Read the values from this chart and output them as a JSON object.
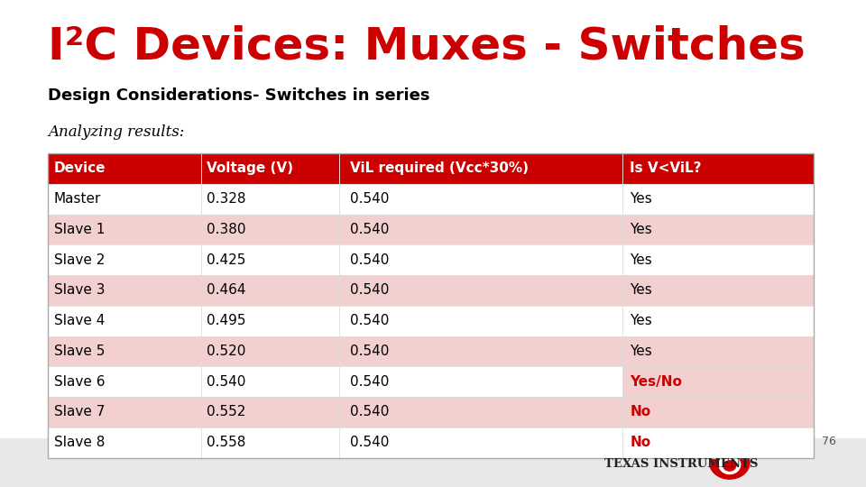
{
  "title_main": "I²C Devices: Muxes - Switches",
  "title_sub": "Design Considerations- Switches in series",
  "analyzing_text": "Analyzing results:",
  "page_number": "76",
  "headers": [
    "Device",
    "Voltage (V)",
    "ViL required (Vcc*30%)",
    "Is V<ViL?"
  ],
  "rows": [
    [
      "Master",
      "0.328",
      "0.540",
      "Yes"
    ],
    [
      "Slave 1",
      "0.380",
      "0.540",
      "Yes"
    ],
    [
      "Slave 2",
      "0.425",
      "0.540",
      "Yes"
    ],
    [
      "Slave 3",
      "0.464",
      "0.540",
      "Yes"
    ],
    [
      "Slave 4",
      "0.495",
      "0.540",
      "Yes"
    ],
    [
      "Slave 5",
      "0.520",
      "0.540",
      "Yes"
    ],
    [
      "Slave 6",
      "0.540",
      "0.540",
      "Yes/No"
    ],
    [
      "Slave 7",
      "0.552",
      "0.540",
      "No"
    ],
    [
      "Slave 8",
      "0.558",
      "0.540",
      "No"
    ]
  ],
  "row_colors": [
    [
      "#ffffff",
      "#ffffff",
      "#ffffff",
      "#ffffff"
    ],
    [
      "#f2d0d0",
      "#f2d0d0",
      "#f2d0d0",
      "#f2d0d0"
    ],
    [
      "#ffffff",
      "#ffffff",
      "#ffffff",
      "#ffffff"
    ],
    [
      "#f2d0d0",
      "#f2d0d0",
      "#f2d0d0",
      "#f2d0d0"
    ],
    [
      "#ffffff",
      "#ffffff",
      "#ffffff",
      "#ffffff"
    ],
    [
      "#f2d0d0",
      "#f2d0d0",
      "#f2d0d0",
      "#f2d0d0"
    ],
    [
      "#ffffff",
      "#ffffff",
      "#ffffff",
      "#f2d0d0"
    ],
    [
      "#f2d0d0",
      "#f2d0d0",
      "#f2d0d0",
      "#f2d0d0"
    ],
    [
      "#ffffff",
      "#ffffff",
      "#ffffff",
      "#ffffff"
    ]
  ],
  "last_col_colors": [
    "#000000",
    "#000000",
    "#000000",
    "#000000",
    "#000000",
    "#000000",
    "#cc0000",
    "#cc0000",
    "#cc0000"
  ],
  "header_bg": "#cc0000",
  "header_text_color": "#ffffff",
  "title_color": "#cc0000",
  "subtitle_color": "#000000",
  "analyzing_color": "#000000",
  "bg_color": "#ffffff",
  "footer_bg": "#e8e8e8",
  "ti_logo_color": "#cc0000"
}
